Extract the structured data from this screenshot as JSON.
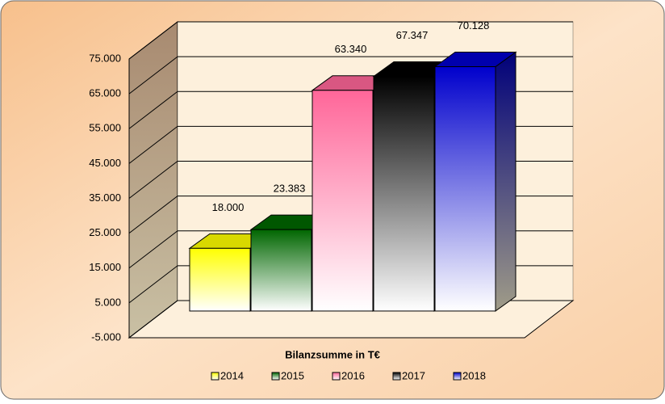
{
  "chart_data": {
    "type": "bar3d",
    "x_label": "Bilanzsumme in T€",
    "categories": [
      "2014",
      "2015",
      "2016",
      "2017",
      "2018"
    ],
    "values": [
      18000,
      23383,
      63340,
      67347,
      70128
    ],
    "value_labels": [
      "18.000",
      "23.383",
      "63.340",
      "67.347",
      "70.128"
    ],
    "colors": [
      "#ffff00",
      "#006600",
      "#ff6699",
      "#000000",
      "#0000cc"
    ],
    "ylim": [
      -5000,
      75000
    ],
    "yticks": [
      {
        "value": -5000,
        "label": "-5.000"
      },
      {
        "value": 5000,
        "label": "5.000"
      },
      {
        "value": 15000,
        "label": "15.000"
      },
      {
        "value": 25000,
        "label": "25.000"
      },
      {
        "value": 35000,
        "label": "35.000"
      },
      {
        "value": 45000,
        "label": "45.000"
      },
      {
        "value": 55000,
        "label": "55.000"
      },
      {
        "value": 65000,
        "label": "65.000"
      },
      {
        "value": 75000,
        "label": "75.000"
      }
    ],
    "grid": true,
    "legend": "bottom"
  }
}
